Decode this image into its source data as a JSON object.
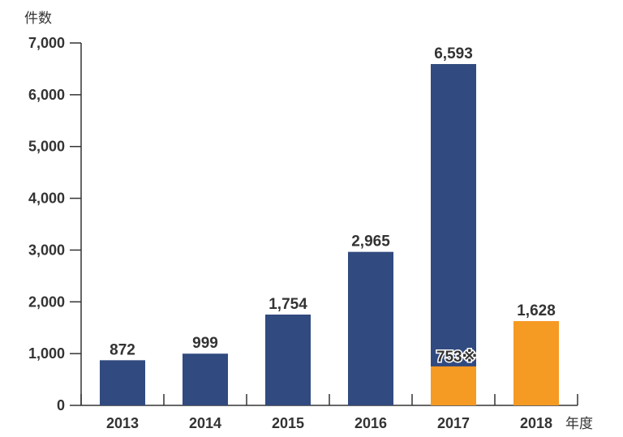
{
  "chart_data": {
    "type": "bar",
    "title": "",
    "ylabel": "件数",
    "xlabel": "年度",
    "ylim": [
      0,
      7000
    ],
    "yticks": [
      0,
      1000,
      2000,
      3000,
      4000,
      5000,
      6000,
      7000
    ],
    "ytick_labels": [
      "0",
      "1,000",
      "2,000",
      "3,000",
      "4,000",
      "5,000",
      "6,000",
      "7,000"
    ],
    "categories": [
      "2013",
      "2014",
      "2015",
      "2016",
      "2017",
      "2018"
    ],
    "series": [
      {
        "name": "total",
        "color": "#314a80",
        "values": [
          872,
          999,
          1754,
          2965,
          6593,
          null
        ],
        "labels": [
          "872",
          "999",
          "1,754",
          "2,965",
          "6,593",
          ""
        ]
      },
      {
        "name": "highlighted",
        "color": "#f59a23",
        "values": [
          null,
          null,
          null,
          null,
          753,
          1628
        ],
        "labels": [
          "",
          "",
          "",
          "",
          "753※",
          "1,628"
        ]
      }
    ],
    "grid": false,
    "legend": "none"
  }
}
